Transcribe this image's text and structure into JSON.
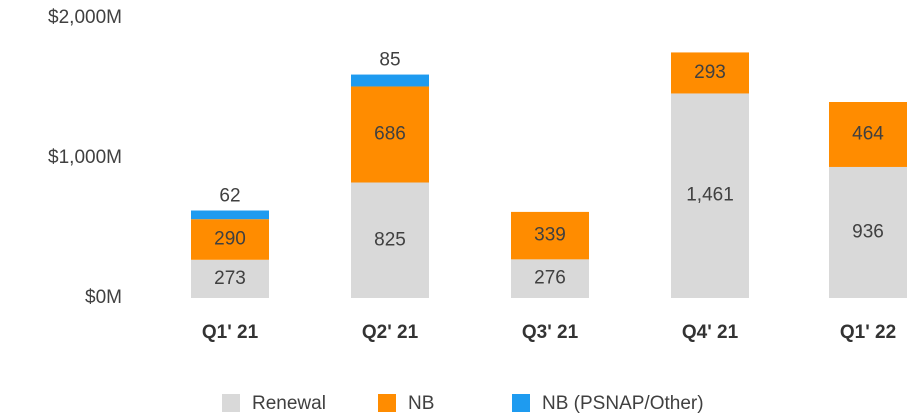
{
  "chart_data": {
    "type": "bar",
    "stacked": true,
    "categories": [
      "Q1' 21",
      "Q2' 21",
      "Q3' 21",
      "Q4' 21",
      "Q1' 22"
    ],
    "series": [
      {
        "name": "Renewal",
        "color": "#d9d9d9",
        "values": [
          273,
          825,
          276,
          1461,
          936
        ],
        "value_labels": [
          "273",
          "825",
          "276",
          "1,461",
          "936"
        ]
      },
      {
        "name": "NB",
        "color": "#ff8c00",
        "values": [
          290,
          686,
          339,
          293,
          464
        ]
      },
      {
        "name": "NB (PSNAP/Other)",
        "color": "#1e9bf0",
        "values": [
          62,
          85,
          null,
          null,
          null
        ]
      }
    ],
    "ylim": [
      0,
      2000
    ],
    "yticks": [
      {
        "value": 0,
        "label": "$0M"
      },
      {
        "value": 1000,
        "label": "$1,000M"
      },
      {
        "value": 2000,
        "label": "$2,000M"
      }
    ],
    "grid": false,
    "legend": "bottom"
  }
}
